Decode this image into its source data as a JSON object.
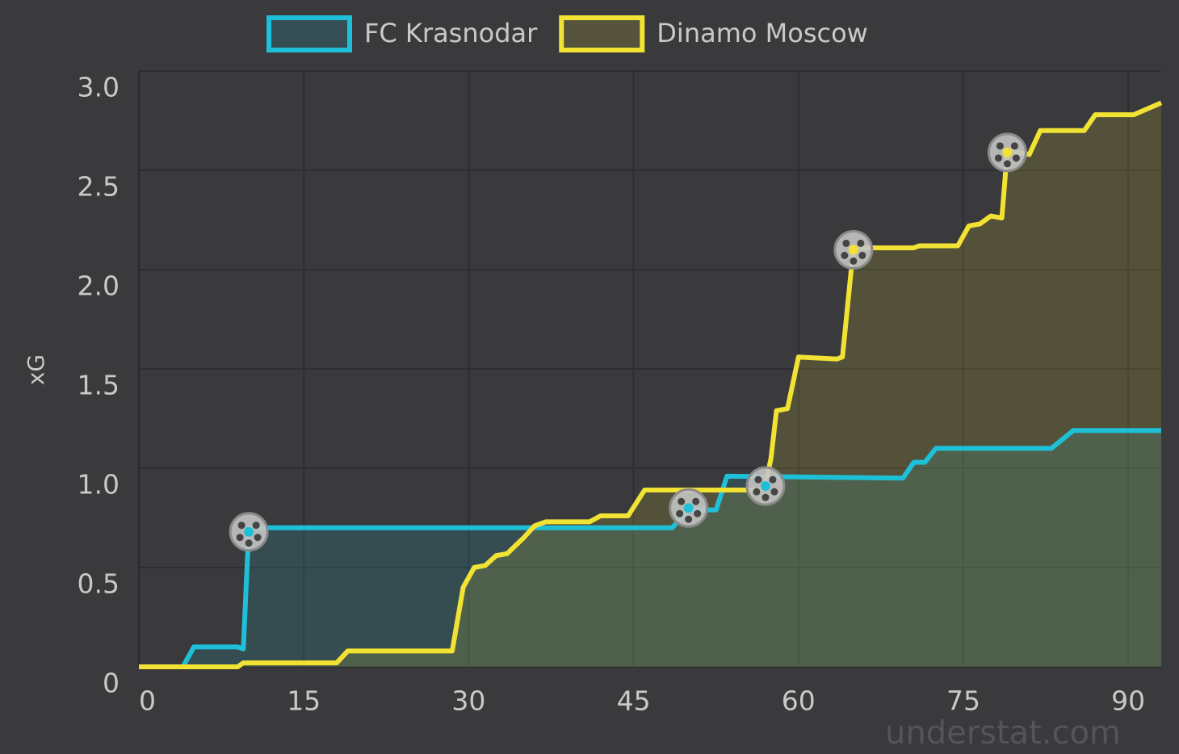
{
  "chart_data": {
    "type": "line",
    "ylabel": "xG",
    "xlim": [
      0,
      93
    ],
    "xticks": [
      0,
      15,
      30,
      45,
      60,
      75,
      90
    ],
    "ylim": [
      0,
      3
    ],
    "yticks": [
      0,
      0.5,
      {
        "value": 1,
        "label": "1.0"
      },
      1.5,
      {
        "value": 2,
        "label": "2.0"
      },
      2.5,
      {
        "value": 3,
        "label": "3.0"
      }
    ],
    "grid": true,
    "legend": "top",
    "watermark": "understat.com",
    "series": [
      {
        "name": "FC Krasnodar",
        "color": "#1ec0d8",
        "x": [
          0,
          4,
          5,
          9,
          9.5,
          10,
          48.5,
          50,
          52.5,
          53.5,
          69.5,
          70.5,
          71.5,
          72.5,
          73.5,
          83,
          85,
          93
        ],
        "y": [
          0,
          0,
          0.1,
          0.1,
          0.09,
          0.7,
          0.7,
          0.79,
          0.79,
          0.96,
          0.95,
          1.03,
          1.03,
          1.1,
          1.1,
          1.1,
          1.19,
          1.19
        ],
        "goals_x": [
          10,
          50,
          57
        ],
        "goals_y": [
          0.68,
          0.8,
          0.91
        ]
      },
      {
        "name": "Dinamo Moscow",
        "color": "#f2e233",
        "x": [
          0,
          9,
          9.5,
          18,
          19,
          28.5,
          29.5,
          30.5,
          31.5,
          32.5,
          33.5,
          35,
          36,
          37,
          41,
          42,
          44.5,
          46,
          56.5,
          57,
          57.5,
          58,
          59,
          60,
          63.5,
          64,
          65,
          70.5,
          71,
          74.5,
          75.5,
          76.5,
          77.5,
          78.5,
          79,
          81,
          82,
          86,
          87,
          90.5,
          93
        ],
        "y": [
          0,
          0,
          0.02,
          0.02,
          0.08,
          0.08,
          0.4,
          0.5,
          0.51,
          0.56,
          0.57,
          0.65,
          0.71,
          0.73,
          0.73,
          0.76,
          0.76,
          0.89,
          0.89,
          0.92,
          1.05,
          1.29,
          1.3,
          1.56,
          1.55,
          1.56,
          2.11,
          2.11,
          2.12,
          2.12,
          2.22,
          2.23,
          2.27,
          2.26,
          2.6,
          2.58,
          2.7,
          2.7,
          2.78,
          2.78,
          2.84
        ],
        "goals_x": [
          65,
          79
        ],
        "goals_y": [
          2.1,
          2.59
        ]
      }
    ]
  }
}
